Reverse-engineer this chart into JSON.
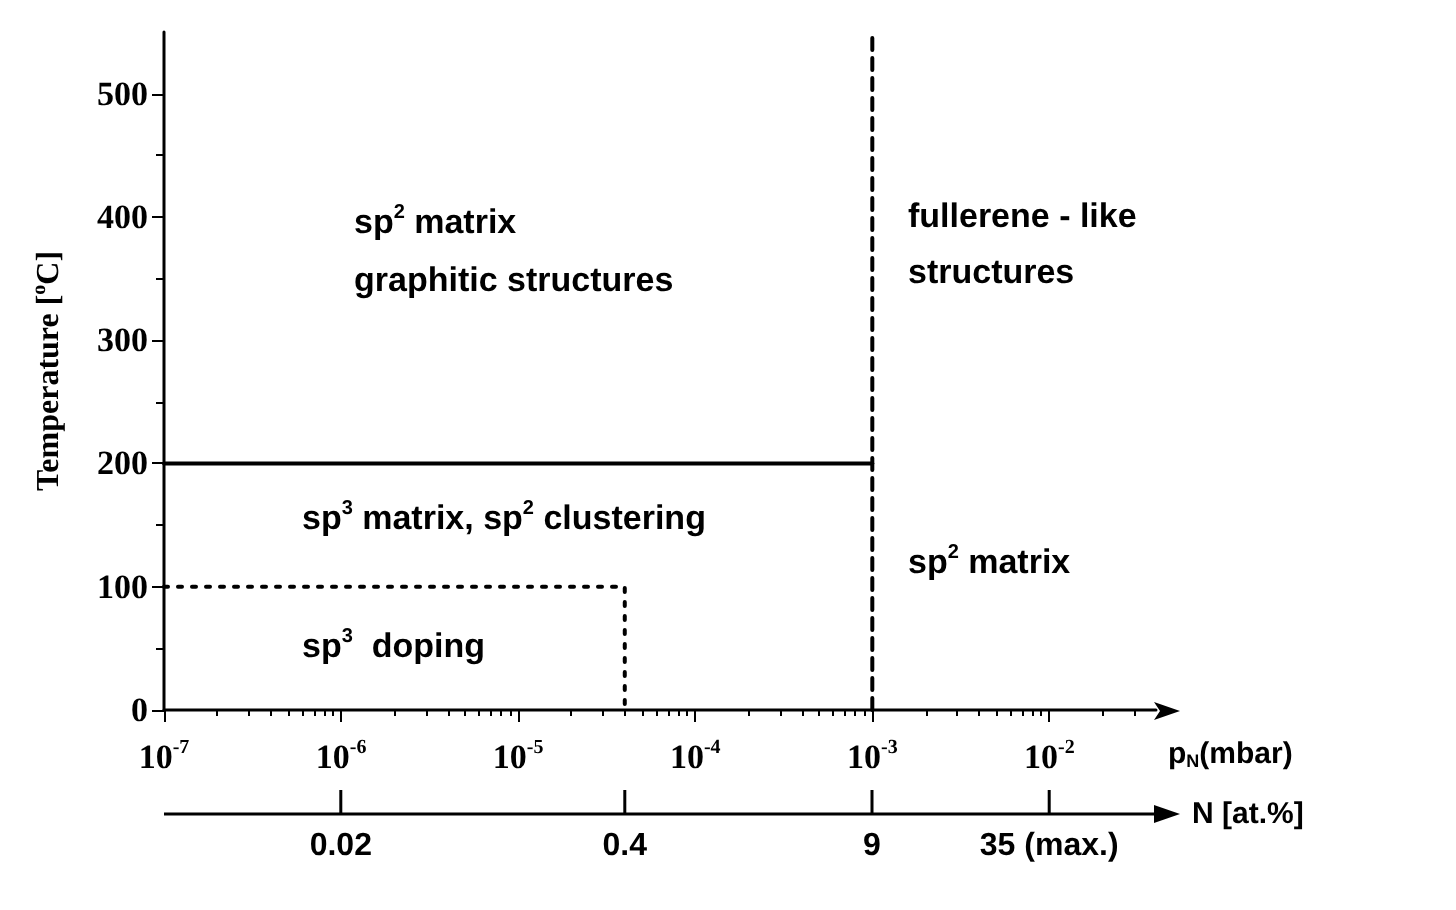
{
  "chart_data": {
    "type": "line",
    "ylabel": "Temperature [$^{o}$C]",
    "xlabel": "p$_{N}$(mbar)",
    "x2label": "N [at.%]",
    "log": "x",
    "grid": false,
    "marker": "none",
    "xlim": [
      1e-07,
      0.04
    ],
    "ylim": [
      0,
      550
    ],
    "xticks": [
      {
        "value": 1e-07,
        "label": "10$^{-7}$"
      },
      {
        "value": 1e-06,
        "label": "10$^{-6}$"
      },
      {
        "value": 1e-05,
        "label": "10$^{-5}$"
      },
      {
        "value": 0.0001,
        "label": "10$^{-4}$"
      },
      {
        "value": 0.001,
        "label": "10$^{-3}$"
      },
      {
        "value": 0.01,
        "label": "10$^{-2}$"
      }
    ],
    "yticks": [
      0,
      100,
      200,
      300,
      400,
      500
    ],
    "series": [
      {
        "color": "#000000",
        "line_style": "solid",
        "x": [
          1e-07,
          0.001
        ],
        "values": [
          200,
          200
        ]
      },
      {
        "color": "#000000",
        "line_style": "dashed",
        "x": [
          0.001,
          0.001
        ],
        "values": [
          0,
          550
        ]
      },
      {
        "color": "#000000",
        "line_style": "dotted",
        "x": [
          1e-07,
          4e-05,
          4e-05
        ],
        "values": [
          100,
          100,
          0
        ]
      }
    ],
    "annotations": [
      "sp$^{2}$ matrix",
      "graphitic structures",
      "fullerene - like",
      "structures",
      "sp$^{3}$ matrix, sp$^{2}$ clustering",
      "sp$^{2}$ matrix",
      "sp$^{3}$  doping",
      "0.02",
      "0.4",
      "9",
      "35 (max.)"
    ]
  }
}
